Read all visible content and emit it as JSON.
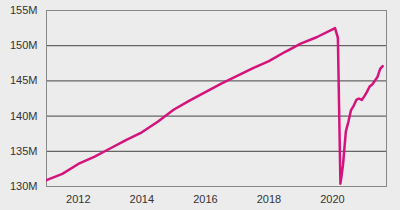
{
  "chart_data": {
    "type": "line",
    "x": [
      2011.0,
      2011.5,
      2012.0,
      2012.5,
      2013.0,
      2013.5,
      2014.0,
      2014.5,
      2015.0,
      2015.5,
      2016.0,
      2016.5,
      2017.0,
      2017.5,
      2018.0,
      2018.5,
      2019.0,
      2019.5,
      2020.08,
      2020.17,
      2020.25,
      2020.33,
      2020.42,
      2020.5,
      2020.58,
      2020.67,
      2020.75,
      2020.83,
      2020.92,
      2021.0,
      2021.08,
      2021.17,
      2021.25,
      2021.33,
      2021.42,
      2021.5,
      2021.58
    ],
    "values": [
      130.9,
      131.8,
      133.2,
      134.2,
      135.4,
      136.6,
      137.7,
      139.2,
      140.9,
      142.2,
      143.4,
      144.6,
      145.7,
      146.8,
      147.8,
      149.1,
      150.3,
      151.2,
      152.5,
      151.1,
      130.4,
      133.0,
      137.8,
      139.2,
      140.8,
      141.5,
      142.3,
      142.5,
      142.3,
      142.8,
      143.4,
      144.2,
      144.5,
      145.0,
      145.6,
      146.7,
      147.1
    ],
    "color": "#d4147c",
    "xlim": [
      2011.0,
      2021.7
    ],
    "xticks": [
      2012,
      2014,
      2016,
      2018,
      2020
    ],
    "ylim": [
      130,
      155
    ],
    "yticks": [
      {
        "value": 130,
        "label": "130M"
      },
      {
        "value": 135,
        "label": "135M"
      },
      {
        "value": 140,
        "label": "140M"
      },
      {
        "value": 145,
        "label": "145M"
      },
      {
        "value": 150,
        "label": "150M"
      },
      {
        "value": 155,
        "label": "155M"
      }
    ],
    "grid": true
  }
}
